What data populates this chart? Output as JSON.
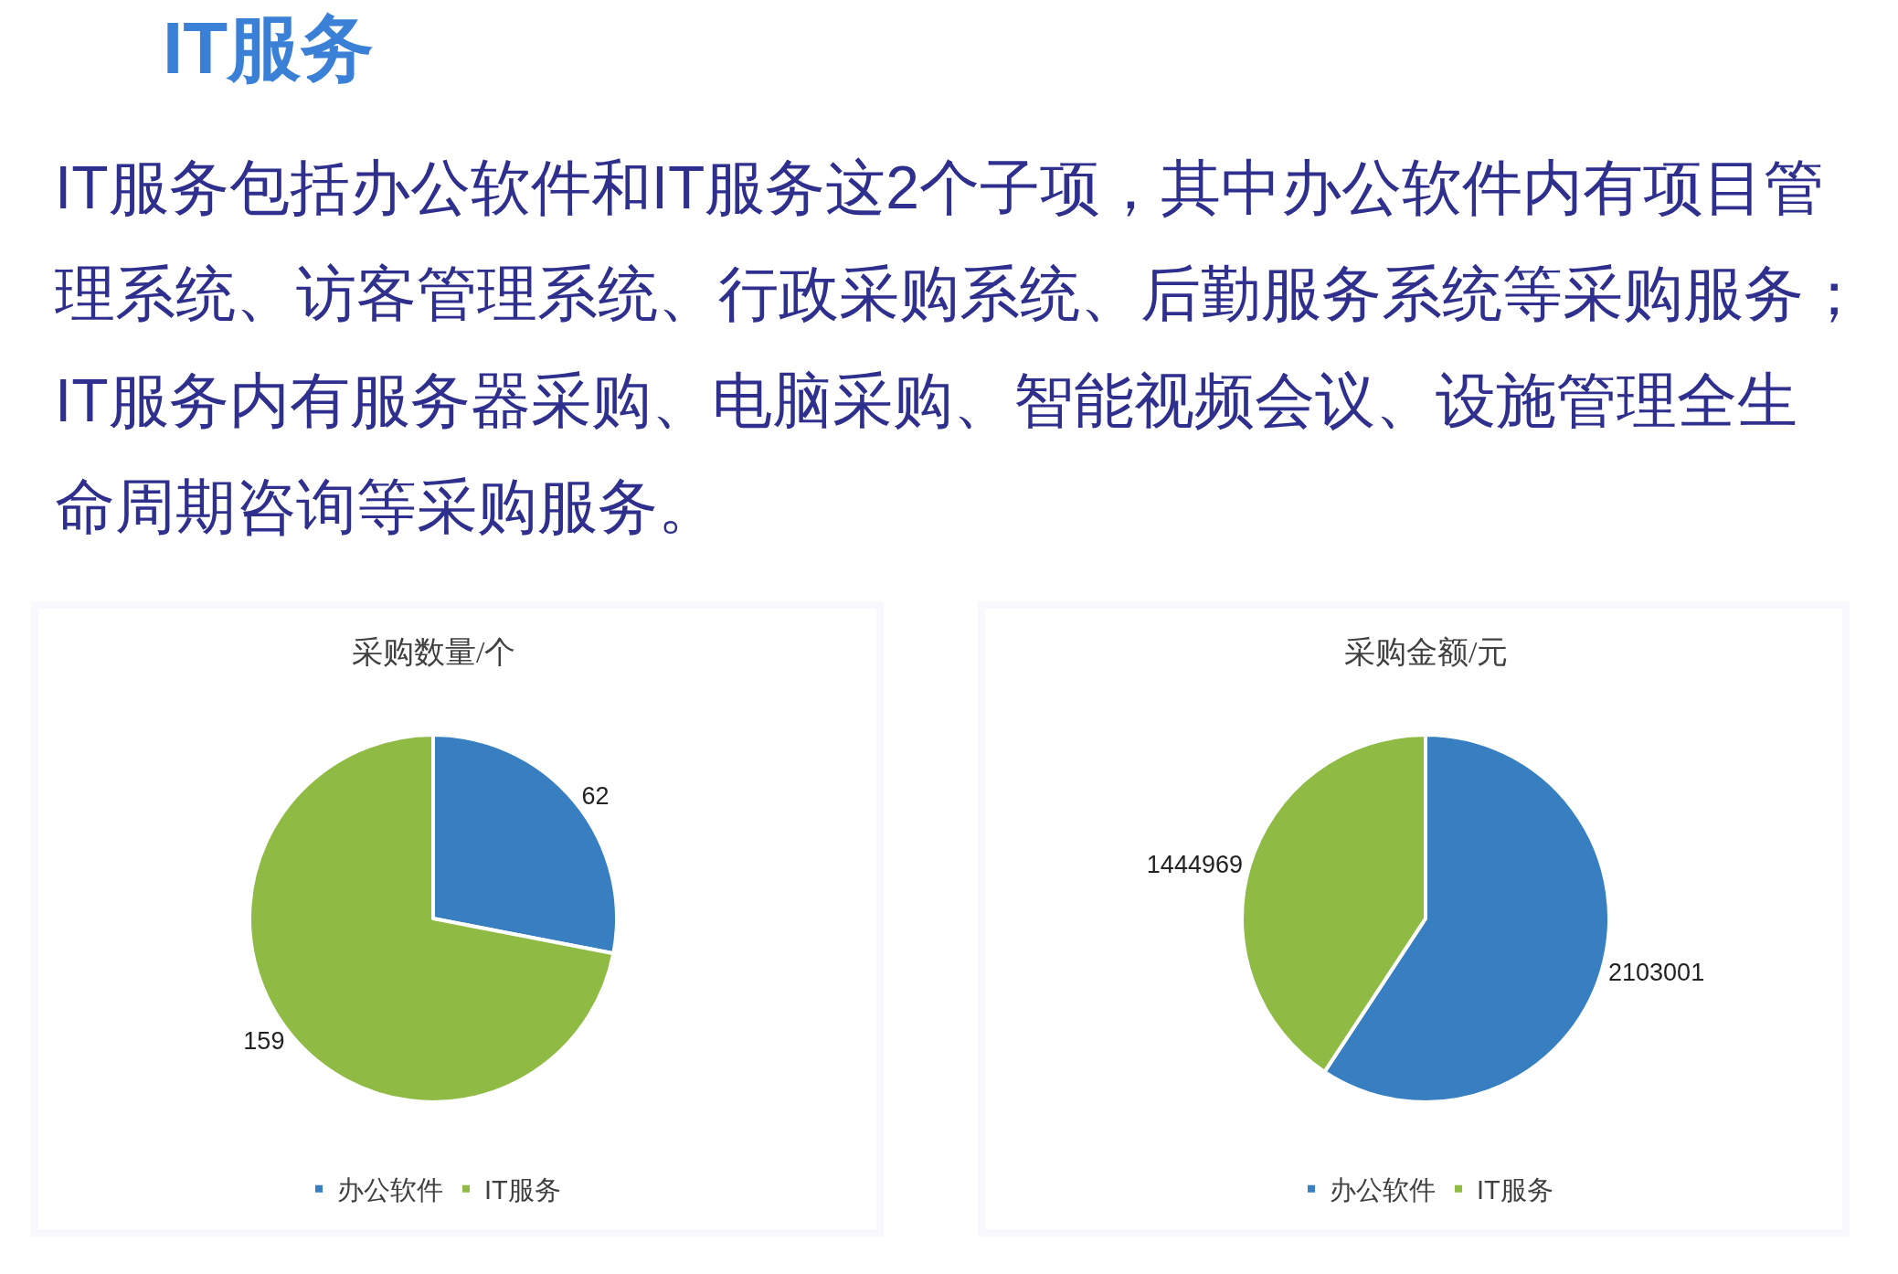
{
  "chart_data": [
    {
      "type": "other",
      "title": "IT服务",
      "subtitle": "IT服务包括办公软件和IT服务这2个子项，其中办公软件内有项目管理系统、访客管理系统、行政采购系统、后勤服务系统等采购服务；IT服务内有服务器采购、电脑采购、智能视频会议、设施管理全生命周期咨询等采购服务。"
    },
    {
      "type": "pie",
      "title": "采购数量/个",
      "categories": [
        "办公软件",
        "IT服务"
      ],
      "values": [
        62,
        159
      ],
      "colors": [
        "#377fc1",
        "#8fbb45"
      ],
      "data_labels": true,
      "legend": "bottom"
    },
    {
      "type": "pie",
      "title": "采购金额/元",
      "categories": [
        "办公软件",
        "IT服务"
      ],
      "values": [
        2103001,
        1444969
      ],
      "colors": [
        "#377fc1",
        "#8fbb45"
      ],
      "data_labels": true,
      "legend": "bottom"
    }
  ]
}
